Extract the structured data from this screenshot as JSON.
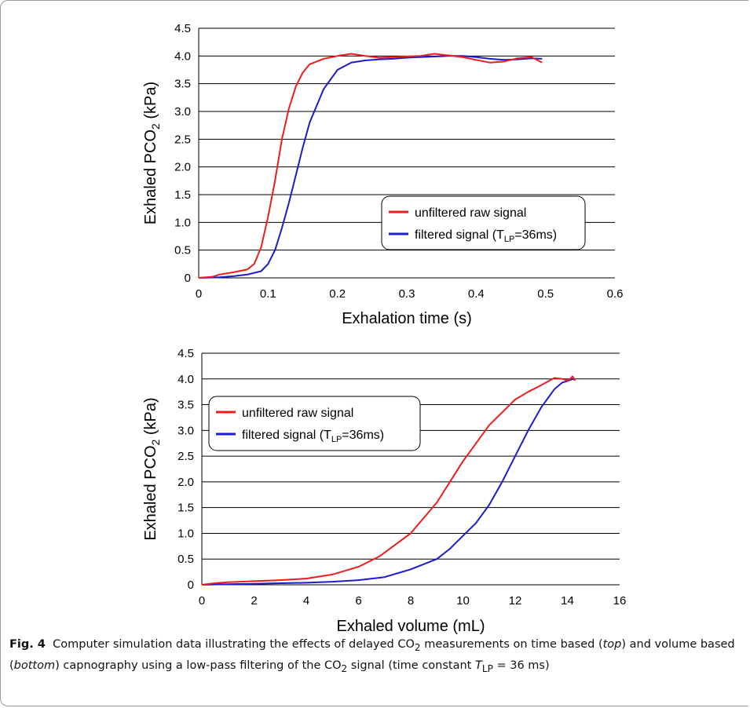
{
  "chart_data": [
    {
      "type": "line",
      "title": "",
      "xlabel": "Exhalation time (s)",
      "ylabel": "Exhaled PCO₂ (kPa)",
      "xlim": [
        0,
        0.6
      ],
      "ylim": [
        0,
        4.5
      ],
      "x_ticks": [
        "0",
        "0.1",
        "0.2",
        "0.3",
        "0.4",
        "0.5",
        "0.6"
      ],
      "y_ticks": [
        "0",
        "0.5",
        "1.0",
        "1.5",
        "2.0",
        "2.5",
        "3.0",
        "3.5",
        "4.0",
        "4.5"
      ],
      "grid": "horizontal",
      "legend_position": "right-middle",
      "legend": [
        {
          "label": "unfiltered raw signal",
          "color": "#ee1c1c"
        },
        {
          "label": "filtered signal (T",
          "sub": "LP",
          "suffix": "=36ms)",
          "color": "#1c1ccc"
        }
      ],
      "series": [
        {
          "name": "unfiltered raw signal",
          "color": "#ee1c1c",
          "x": [
            0,
            0.02,
            0.03,
            0.05,
            0.07,
            0.08,
            0.09,
            0.1,
            0.11,
            0.12,
            0.13,
            0.14,
            0.15,
            0.16,
            0.18,
            0.2,
            0.22,
            0.24,
            0.26,
            0.28,
            0.3,
            0.32,
            0.34,
            0.36,
            0.38,
            0.4,
            0.42,
            0.44,
            0.46,
            0.48,
            0.495
          ],
          "y": [
            0,
            0.02,
            0.06,
            0.1,
            0.15,
            0.25,
            0.55,
            1.1,
            1.75,
            2.5,
            3.05,
            3.45,
            3.7,
            3.85,
            3.95,
            4.0,
            4.04,
            4.0,
            3.97,
            3.98,
            3.99,
            4.0,
            4.04,
            4.01,
            3.98,
            3.93,
            3.88,
            3.9,
            3.96,
            3.98,
            3.88
          ]
        },
        {
          "name": "filtered signal (TLP=36ms)",
          "color": "#1c1ccc",
          "x": [
            0,
            0.03,
            0.05,
            0.07,
            0.09,
            0.1,
            0.11,
            0.12,
            0.13,
            0.14,
            0.15,
            0.16,
            0.18,
            0.2,
            0.22,
            0.24,
            0.26,
            0.28,
            0.3,
            0.32,
            0.34,
            0.36,
            0.38,
            0.4,
            0.42,
            0.44,
            0.46,
            0.48,
            0.495
          ],
          "y": [
            0,
            0.01,
            0.03,
            0.06,
            0.12,
            0.25,
            0.5,
            0.9,
            1.35,
            1.85,
            2.35,
            2.8,
            3.4,
            3.75,
            3.88,
            3.92,
            3.94,
            3.95,
            3.97,
            3.98,
            3.99,
            4.0,
            4.0,
            3.98,
            3.95,
            3.93,
            3.94,
            3.96,
            3.95
          ]
        }
      ]
    },
    {
      "type": "line",
      "title": "",
      "xlabel": "Exhaled volume (mL)",
      "ylabel": "Exhaled PCO₂ (kPa)",
      "xlim": [
        0,
        16
      ],
      "ylim": [
        0,
        4.5
      ],
      "x_ticks": [
        "0",
        "2",
        "4",
        "6",
        "8",
        "10",
        "12",
        "14",
        "16"
      ],
      "y_ticks": [
        "0",
        "0.5",
        "1.0",
        "1.5",
        "2.0",
        "2.5",
        "3.0",
        "3.5",
        "4.0",
        "4.5"
      ],
      "grid": "horizontal",
      "legend_position": "left-upper",
      "legend": [
        {
          "label": "unfiltered raw signal",
          "color": "#ee1c1c"
        },
        {
          "label": "filtered signal (T",
          "sub": "LP",
          "suffix": "=36ms)",
          "color": "#1c1ccc"
        }
      ],
      "series": [
        {
          "name": "unfiltered raw signal",
          "color": "#ee1c1c",
          "x": [
            0,
            0.5,
            1,
            2,
            3,
            4,
            5,
            6,
            6.8,
            8,
            9,
            10,
            11,
            12,
            12.5,
            13,
            13.5,
            13.8,
            14,
            14.1,
            14.2,
            14.3
          ],
          "y": [
            0,
            0.03,
            0.05,
            0.07,
            0.09,
            0.12,
            0.2,
            0.35,
            0.55,
            1.0,
            1.6,
            2.4,
            3.1,
            3.6,
            3.75,
            3.88,
            4.02,
            4.0,
            3.97,
            4.0,
            4.05,
            3.97
          ]
        },
        {
          "name": "filtered signal (TLP=36ms)",
          "color": "#1c1ccc",
          "x": [
            0,
            1,
            2,
            3,
            4,
            5,
            6,
            7,
            8,
            9,
            9.5,
            10,
            10.5,
            11,
            11.5,
            12,
            12.5,
            13,
            13.5,
            13.8,
            14,
            14.2,
            14.3
          ],
          "y": [
            0,
            0.01,
            0.02,
            0.03,
            0.04,
            0.06,
            0.09,
            0.15,
            0.3,
            0.5,
            0.7,
            0.95,
            1.2,
            1.55,
            2.0,
            2.5,
            3.0,
            3.45,
            3.8,
            3.93,
            3.96,
            4.0,
            3.98
          ]
        }
      ]
    }
  ],
  "caption": {
    "label": "Fig. 4",
    "text_1": "Computer simulation data illustrating the effects of delayed CO",
    "sub_1": "2",
    "text_2": " measurements on time based (",
    "em_1": "top",
    "text_3": ") and volume based (",
    "em_2": "bottom",
    "text_4": ") capnography using a low-pass filtering of the CO",
    "sub_2": "2",
    "text_5": " signal (time constant ",
    "t_var": "T",
    "t_sub": "LP",
    "text_6": " = 36 ms)"
  }
}
